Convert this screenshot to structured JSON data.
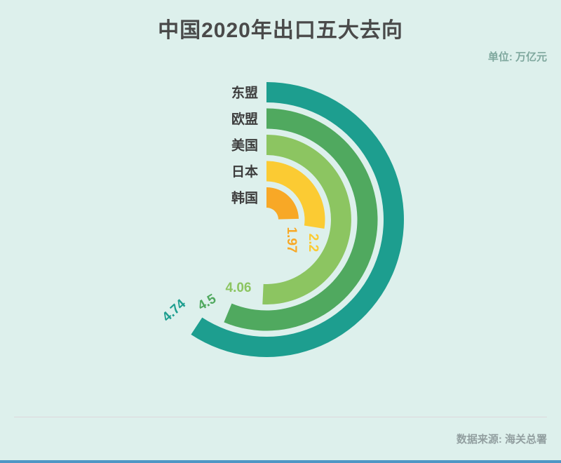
{
  "header": {
    "title": "中国2020年出口五大去向",
    "unit_label": "单位: 万亿元"
  },
  "footer": {
    "source_label": "数据来源: 海关总署"
  },
  "chart_data": {
    "type": "bar",
    "variant": "radial-progress-rings",
    "title": "中国2020年出口五大去向",
    "unit": "万亿元",
    "source": "海关总署",
    "categories": [
      "东盟",
      "欧盟",
      "美国",
      "日本",
      "韩国"
    ],
    "keys": [
      "asean",
      "eu",
      "usa",
      "japan",
      "korea"
    ],
    "values": [
      4.74,
      4.5,
      4.06,
      2.2,
      1.97
    ],
    "value_labels": [
      "4.74",
      "4.5",
      "4.06",
      "2.2",
      "1.97"
    ],
    "colors": [
      "#1d9e8f",
      "#50a95f",
      "#8cc561",
      "#fbcb33",
      "#f8a826"
    ],
    "start_angle_deg": 0,
    "angle_per_unit_deg": 45,
    "angle_scale_note": "full circle = 8 万亿元, arcs sweep clockwise from 12 o'clock",
    "grid": false,
    "legend_position": "ring-start-left"
  },
  "style": {
    "background": "#ddf0ec",
    "title_color": "#4a4a4a",
    "category_label_color": "#3d3d3d",
    "unit_text_color": "#7fa89e",
    "source_text_color": "#929fa0",
    "divider_color": "#dcd7dc",
    "bottom_bar_color": "#4e96c5"
  }
}
